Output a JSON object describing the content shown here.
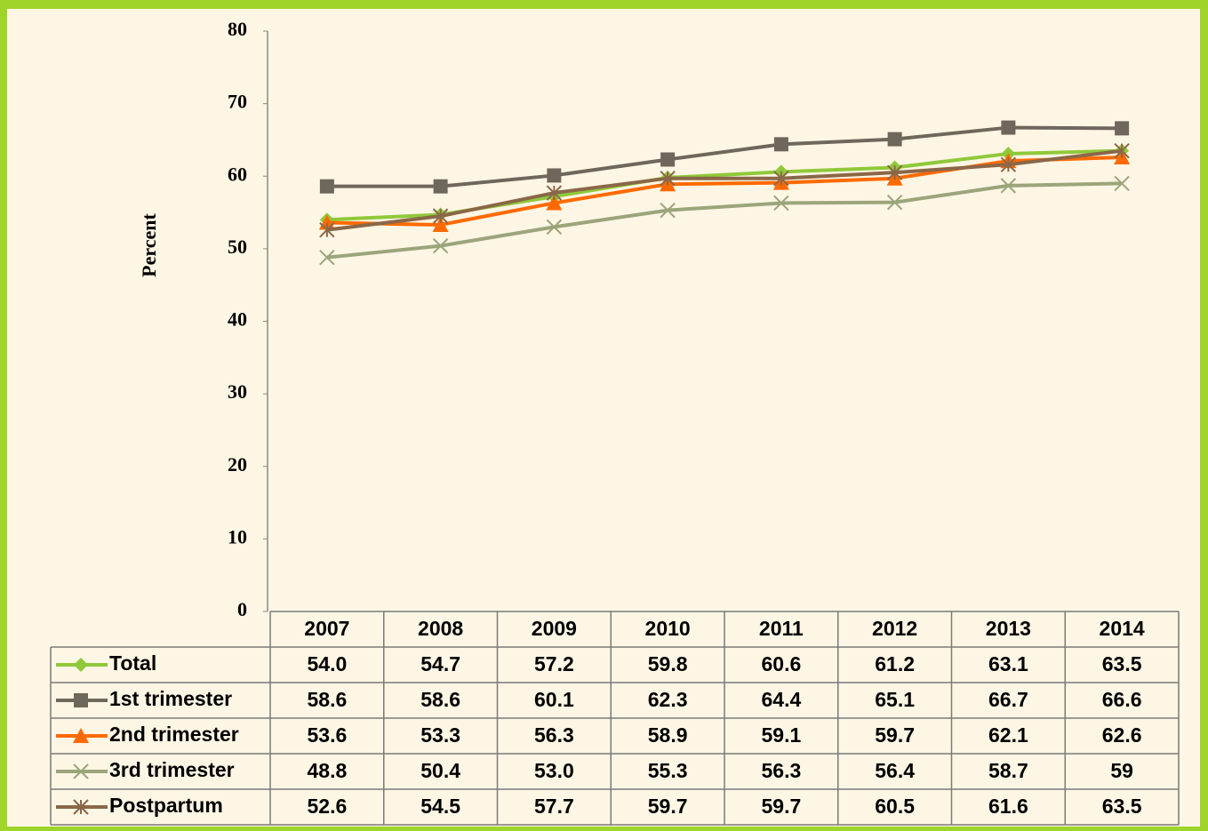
{
  "chart_data": {
    "type": "line",
    "y_label": "Percent",
    "categories": [
      "2007",
      "2008",
      "2009",
      "2010",
      "2011",
      "2012",
      "2013",
      "2014"
    ],
    "ylim": [
      0,
      80
    ],
    "yticks": [
      0,
      10,
      20,
      30,
      40,
      50,
      60,
      70,
      80
    ],
    "grid": false,
    "data_table": true,
    "series": [
      {
        "name": "Total",
        "color": "#8fc93a",
        "marker": "diamond",
        "values": [
          54.0,
          54.7,
          57.2,
          59.8,
          60.6,
          61.2,
          63.1,
          63.5
        ],
        "value_labels": [
          "54.0",
          "54.7",
          "57.2",
          "59.8",
          "60.6",
          "61.2",
          "63.1",
          "63.5"
        ]
      },
      {
        "name": "1st trimester",
        "color": "#6e675c",
        "marker": "square",
        "values": [
          58.6,
          58.6,
          60.1,
          62.3,
          64.4,
          65.1,
          66.7,
          66.6
        ],
        "value_labels": [
          "58.6",
          "58.6",
          "60.1",
          "62.3",
          "64.4",
          "65.1",
          "66.7",
          "66.6"
        ]
      },
      {
        "name": "2nd trimester",
        "color": "#ff6a00",
        "marker": "triangle",
        "values": [
          53.6,
          53.3,
          56.3,
          58.9,
          59.1,
          59.7,
          62.1,
          62.6
        ],
        "value_labels": [
          "53.6",
          "53.3",
          "56.3",
          "58.9",
          "59.1",
          "59.7",
          "62.1",
          "62.6"
        ]
      },
      {
        "name": "3rd trimester",
        "color": "#9ba57b",
        "marker": "x",
        "values": [
          48.8,
          50.4,
          53.0,
          55.3,
          56.3,
          56.4,
          58.7,
          59
        ],
        "value_labels": [
          "48.8",
          "50.4",
          "53.0",
          "55.3",
          "56.3",
          "56.4",
          "58.7",
          "59"
        ]
      },
      {
        "name": "Postpartum",
        "color": "#8a6748",
        "marker": "star",
        "values": [
          52.6,
          54.5,
          57.7,
          59.7,
          59.7,
          60.5,
          61.6,
          63.5
        ],
        "value_labels": [
          "52.6",
          "54.5",
          "57.7",
          "59.7",
          "59.7",
          "60.5",
          "61.6",
          "63.5"
        ]
      }
    ]
  }
}
